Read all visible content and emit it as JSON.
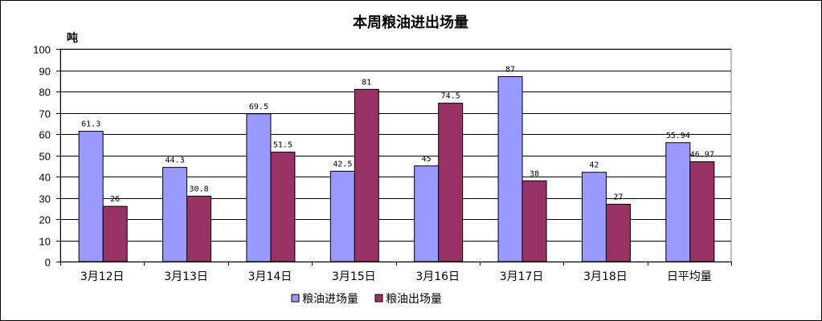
{
  "chart_data": {
    "type": "bar",
    "title": "本周粮油进出场量",
    "ylabel": "吨",
    "xlabel": "",
    "ylim": [
      0,
      100
    ],
    "yticks": [
      0,
      10,
      20,
      30,
      40,
      50,
      60,
      70,
      80,
      90,
      100
    ],
    "grid": true,
    "legend_position": "bottom",
    "categories": [
      "3月12日",
      "3月13日",
      "3月14日",
      "3月15日",
      "3月16日",
      "3月17日",
      "3月18日",
      "日平均量"
    ],
    "series": [
      {
        "name": "粮油进场量",
        "color": "#9999ff",
        "values": [
          61.3,
          44.3,
          69.5,
          42.5,
          45,
          87,
          42,
          55.94
        ],
        "labels": [
          "61.3",
          "44.3",
          "69.5",
          "42.5",
          "45",
          "87",
          "42",
          "55.94"
        ]
      },
      {
        "name": "粮油出场量",
        "color": "#993366",
        "values": [
          26,
          30.8,
          51.5,
          81,
          74.5,
          38,
          27,
          46.97
        ],
        "labels": [
          "26",
          "30.8",
          "51.5",
          "81",
          "74.5",
          "38",
          "27",
          "46.97"
        ]
      }
    ]
  }
}
